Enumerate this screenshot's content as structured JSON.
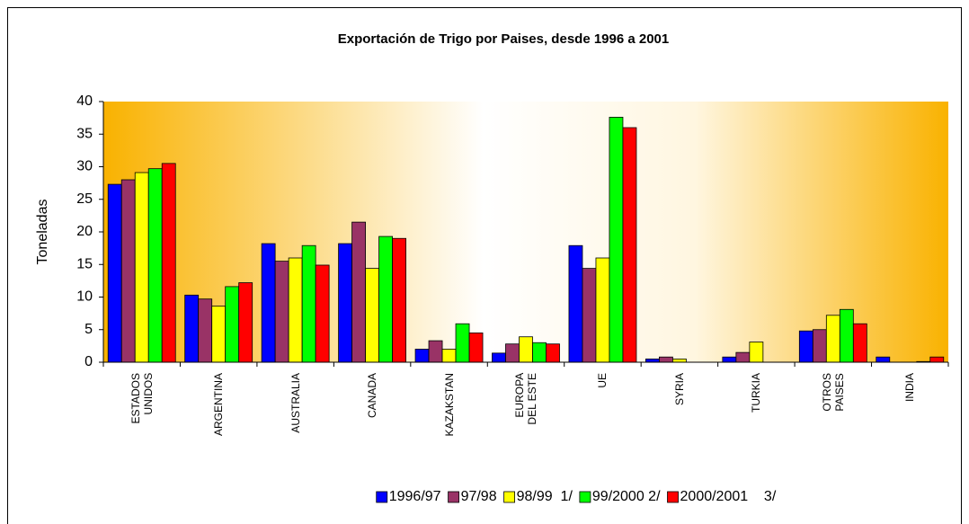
{
  "chart_data": {
    "type": "bar",
    "title": "Exportación de Trigo por Paises, desde 1996 a 2001",
    "y_label": "Toneladas",
    "categories": [
      "ESTADOS\nUNIDOS",
      "ARGENTINA",
      "AUSTRALIA",
      "CANADA",
      "KAZAKSTAN",
      "EUROPA\nDEL ESTE",
      "UE",
      "SYRIA",
      "TURKIA",
      "OTROS\nPAISES",
      "INDIA"
    ],
    "series": [
      {
        "name": "1996/97",
        "color": "#0000ff",
        "values": [
          27.3,
          10.3,
          18.2,
          18.2,
          2.0,
          1.4,
          17.9,
          0.5,
          0.8,
          4.8,
          0.8
        ]
      },
      {
        "name": "97/98",
        "color": "#993366",
        "values": [
          28.0,
          9.7,
          15.5,
          21.5,
          3.3,
          2.8,
          14.4,
          0.8,
          1.5,
          5.0,
          0
        ]
      },
      {
        "name": "98/99  1/",
        "color": "#ffff00",
        "values": [
          29.1,
          8.6,
          16.0,
          14.4,
          2.0,
          3.9,
          16.0,
          0.5,
          3.1,
          7.2,
          0
        ]
      },
      {
        "name": "99/2000 2/",
        "color": "#00ff00",
        "values": [
          29.7,
          11.6,
          17.9,
          19.3,
          5.9,
          3.0,
          37.6,
          0,
          0,
          8.1,
          0.1
        ]
      },
      {
        "name": "2000/2001    3/",
        "color": "#ff0000",
        "values": [
          30.5,
          12.2,
          14.9,
          19.0,
          4.5,
          2.8,
          36.0,
          0,
          0,
          5.9,
          0.8
        ]
      }
    ],
    "ylim": [
      0,
      40
    ],
    "yticks": [
      0,
      5,
      10,
      15,
      20,
      25,
      30,
      35,
      40
    ],
    "legend": "bottom"
  }
}
